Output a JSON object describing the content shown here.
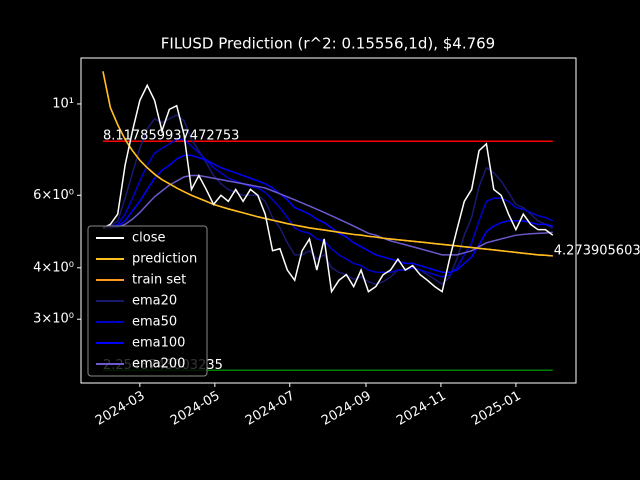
{
  "chart_data": {
    "type": "line",
    "title": "FILUSD Prediction (r^2: 0.15556,1d), $4.769",
    "log_y": true,
    "legend": "lower left",
    "xlim": [
      -2.98,
      64.15
    ],
    "xticks": [
      {
        "value": 5,
        "label": "2024-03"
      },
      {
        "value": 15.17,
        "label": "2024-05"
      },
      {
        "value": 25.33,
        "label": "2024-07"
      },
      {
        "value": 35.67,
        "label": "2024-09"
      },
      {
        "value": 45.83,
        "label": "2024-11"
      },
      {
        "value": 56,
        "label": "2025-01"
      }
    ],
    "ylim": [
      2.1,
      12.93
    ],
    "yticks": [
      {
        "value": 3,
        "label": "3×10⁰"
      },
      {
        "value": 4,
        "label": "4×10⁰"
      },
      {
        "value": 6,
        "label": "6×10⁰"
      },
      {
        "value": 10,
        "label": "10¹"
      }
    ],
    "series": [
      {
        "name": "close",
        "color": "#ffffff",
        "values": [
          5.0,
          5.1,
          5.4,
          7.1,
          8.6,
          10.2,
          11.1,
          10.2,
          8.6,
          9.7,
          9.9,
          8.4,
          6.2,
          6.7,
          6.2,
          5.7,
          6.0,
          5.8,
          6.2,
          5.8,
          6.2,
          6.0,
          5.4,
          4.4,
          4.45,
          3.95,
          3.73,
          4.4,
          4.7,
          3.95,
          4.7,
          3.5,
          3.73,
          3.85,
          3.6,
          3.95,
          3.5,
          3.6,
          3.85,
          3.95,
          4.2,
          3.95,
          4.05,
          3.85,
          3.73,
          3.6,
          3.5,
          4.2,
          4.95,
          5.8,
          6.2,
          7.7,
          8.0,
          6.2,
          6.0,
          5.4,
          4.95,
          5.4,
          5.1,
          4.95,
          4.95,
          4.8
        ]
      },
      {
        "name": "prediction",
        "color": "#ffbf1f",
        "values": [
          12.0,
          9.8,
          8.9,
          8.2,
          7.7,
          7.3,
          7.0,
          6.75,
          6.55,
          6.4,
          6.25,
          6.12,
          6.0,
          5.9,
          5.8,
          5.7,
          5.63,
          5.56,
          5.5,
          5.44,
          5.38,
          5.32,
          5.27,
          5.22,
          5.17,
          5.12,
          5.08,
          5.04,
          5.0,
          4.97,
          4.94,
          4.91,
          4.88,
          4.85,
          4.82,
          4.8,
          4.77,
          4.75,
          4.72,
          4.7,
          4.68,
          4.66,
          4.64,
          4.62,
          4.6,
          4.58,
          4.56,
          4.54,
          4.52,
          4.5,
          4.48,
          4.46,
          4.44,
          4.42,
          4.4,
          4.38,
          4.36,
          4.34,
          4.32,
          4.3,
          4.29,
          4.273905603
        ]
      },
      {
        "name": "train set",
        "color": "#ff9a1f",
        "values": [
          12.0,
          9.8,
          8.9,
          8.2,
          7.7,
          7.3,
          7.0,
          6.75,
          6.55,
          6.4,
          6.25,
          6.12,
          6.0,
          5.9,
          5.8,
          5.7,
          5.63,
          5.56,
          5.5,
          5.44,
          5.38,
          5.32,
          5.27,
          5.22,
          5.17,
          5.12,
          5.08,
          5.04,
          5.0,
          4.97,
          4.94,
          4.91,
          4.88,
          4.85,
          4.82,
          4.8,
          4.77,
          4.75,
          4.72,
          4.7,
          4.68,
          4.66,
          4.64,
          4.62,
          4.6,
          4.58,
          4.56,
          4.54,
          4.52,
          4.5,
          4.48,
          4.46,
          4.44,
          4.42,
          4.4,
          4.38,
          4.36,
          4.34,
          4.32,
          4.3,
          4.29,
          4.274
        ]
      },
      {
        "name": "ema20",
        "color": "#191970",
        "values": [
          5.0,
          5.05,
          5.2,
          5.9,
          6.8,
          7.8,
          8.7,
          9.2,
          9.0,
          9.2,
          9.4,
          9.1,
          8.2,
          7.7,
          7.2,
          6.7,
          6.4,
          6.2,
          6.1,
          6.0,
          6.0,
          6.0,
          5.8,
          5.3,
          5.0,
          4.6,
          4.3,
          4.3,
          4.4,
          4.2,
          4.3,
          4.0,
          3.9,
          3.85,
          3.75,
          3.8,
          3.7,
          3.65,
          3.7,
          3.8,
          3.95,
          3.95,
          4.0,
          3.95,
          3.85,
          3.75,
          3.65,
          3.8,
          4.2,
          4.8,
          5.3,
          6.3,
          7.0,
          6.8,
          6.5,
          6.1,
          5.7,
          5.6,
          5.4,
          5.2,
          5.1,
          5.0
        ]
      },
      {
        "name": "ema50",
        "color": "#0000cd",
        "values": [
          5.0,
          5.02,
          5.1,
          5.4,
          5.9,
          6.5,
          7.1,
          7.6,
          7.8,
          8.0,
          8.2,
          8.2,
          7.9,
          7.6,
          7.3,
          7.0,
          6.8,
          6.6,
          6.5,
          6.4,
          6.3,
          6.25,
          6.1,
          5.85,
          5.6,
          5.3,
          5.0,
          4.9,
          4.85,
          4.7,
          4.65,
          4.45,
          4.3,
          4.2,
          4.1,
          4.05,
          3.95,
          3.9,
          3.9,
          3.9,
          3.95,
          3.95,
          4.0,
          3.95,
          3.9,
          3.85,
          3.8,
          3.85,
          4.0,
          4.3,
          4.6,
          5.2,
          5.8,
          5.9,
          5.9,
          5.8,
          5.6,
          5.55,
          5.45,
          5.35,
          5.3,
          5.2
        ]
      },
      {
        "name": "ema100",
        "color": "#0000ff",
        "values": [
          5.0,
          5.01,
          5.05,
          5.2,
          5.5,
          5.8,
          6.2,
          6.6,
          6.9,
          7.1,
          7.35,
          7.5,
          7.5,
          7.4,
          7.3,
          7.15,
          7.0,
          6.9,
          6.8,
          6.7,
          6.6,
          6.5,
          6.4,
          6.25,
          6.05,
          5.85,
          5.6,
          5.5,
          5.4,
          5.25,
          5.15,
          5.0,
          4.85,
          4.75,
          4.6,
          4.5,
          4.4,
          4.3,
          4.25,
          4.2,
          4.15,
          4.1,
          4.1,
          4.05,
          4.0,
          3.95,
          3.9,
          3.9,
          3.95,
          4.1,
          4.25,
          4.55,
          4.9,
          5.05,
          5.15,
          5.2,
          5.2,
          5.2,
          5.15,
          5.1,
          5.1,
          5.05
        ]
      },
      {
        "name": "ema200",
        "color": "#6a5acd",
        "values": [
          5.0,
          5.0,
          5.02,
          5.1,
          5.25,
          5.45,
          5.7,
          5.95,
          6.15,
          6.35,
          6.5,
          6.65,
          6.7,
          6.7,
          6.65,
          6.6,
          6.55,
          6.5,
          6.45,
          6.4,
          6.35,
          6.3,
          6.25,
          6.15,
          6.05,
          5.95,
          5.85,
          5.75,
          5.65,
          5.55,
          5.45,
          5.35,
          5.25,
          5.15,
          5.05,
          4.95,
          4.85,
          4.8,
          4.72,
          4.65,
          4.6,
          4.55,
          4.5,
          4.45,
          4.4,
          4.35,
          4.3,
          4.3,
          4.3,
          4.35,
          4.4,
          4.5,
          4.6,
          4.65,
          4.7,
          4.75,
          4.8,
          4.82,
          4.84,
          4.85,
          4.86,
          4.88
        ]
      }
    ],
    "hlines": [
      {
        "value": 8.117859937472753,
        "color": "#ff0000"
      },
      {
        "value": 2.2548743003235,
        "color": "#008000"
      }
    ]
  }
}
